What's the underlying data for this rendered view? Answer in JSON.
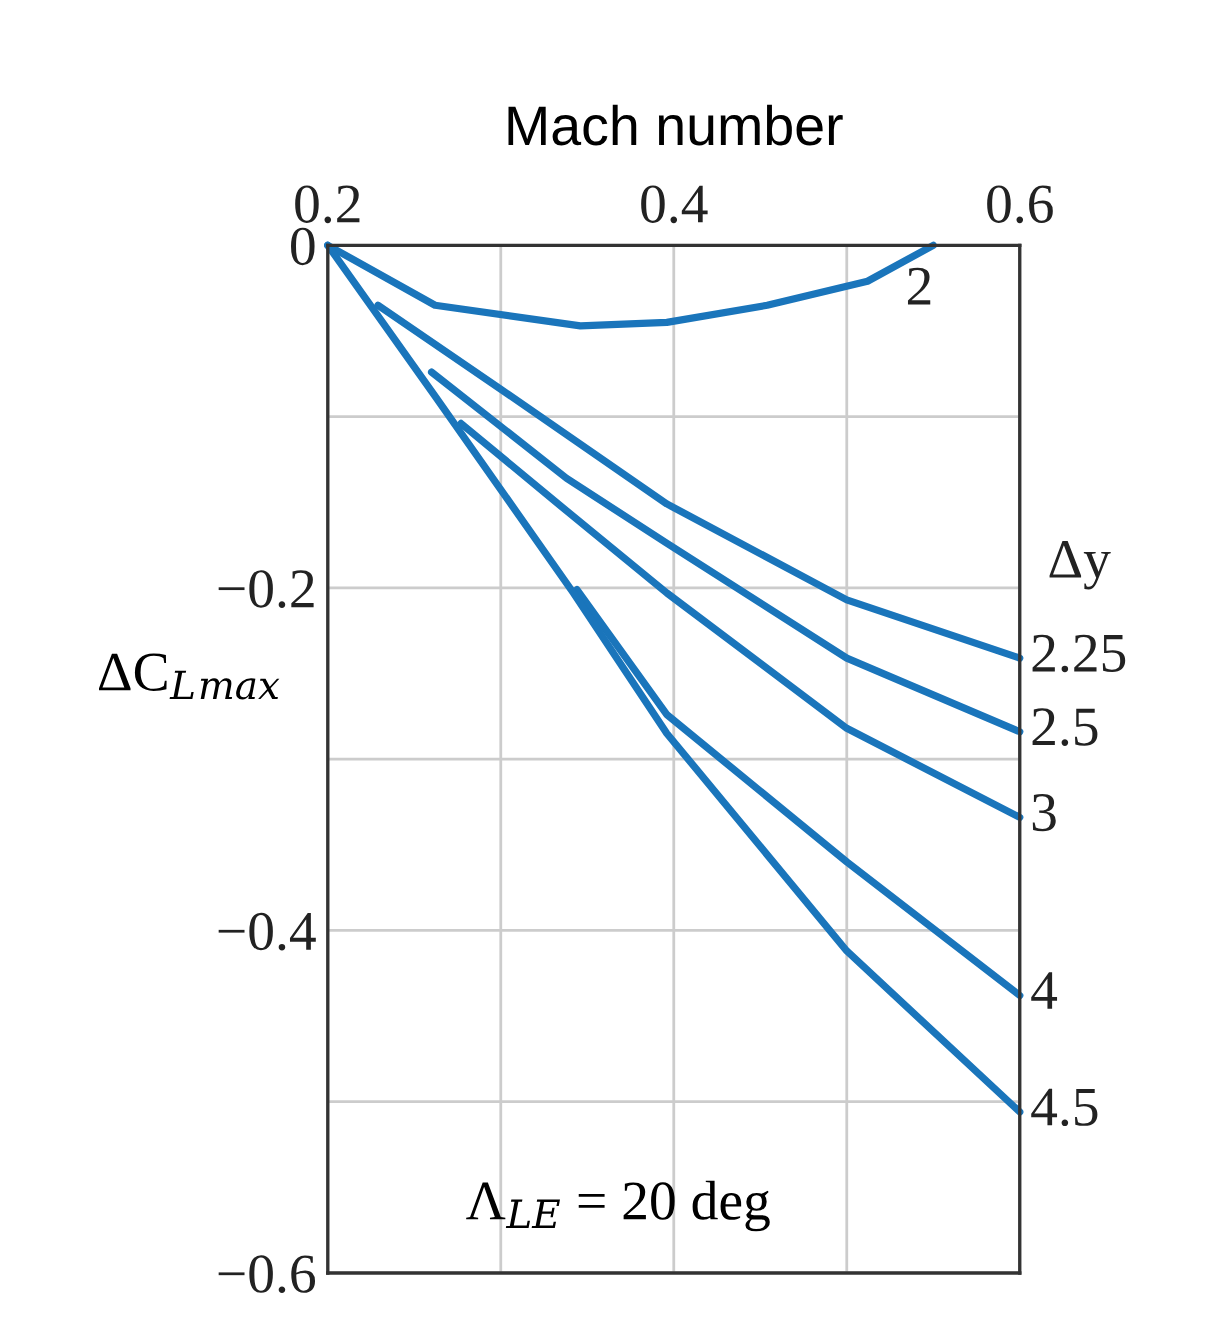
{
  "chart_data": {
    "type": "line",
    "xlabel": "Mach number",
    "ylabel": "ΔC$_{L}$$_{max}$",
    "legend_title": "Δy",
    "annotations": [
      "Λ$_{LE}$ = 20 deg"
    ],
    "xlim": [
      0.2,
      0.6
    ],
    "ylim": [
      -0.6,
      0
    ],
    "xticks": [
      0.2,
      {
        "value": 0.3,
        "label": null
      },
      0.4,
      {
        "value": 0.5,
        "label": null
      },
      0.6
    ],
    "yticks": [
      {
        "value": 0,
        "label": "0"
      },
      {
        "value": -0.1,
        "label": null
      },
      {
        "value": -0.2,
        "label": "−0.2"
      },
      {
        "value": -0.3,
        "label": null
      },
      {
        "value": -0.4,
        "label": "−0.4"
      },
      {
        "value": -0.5,
        "label": null
      },
      {
        "value": -0.6,
        "label": "−0.6"
      }
    ],
    "grid": true,
    "marker": "none",
    "line_style": "solid",
    "series": [
      {
        "name": "2",
        "color": "#1a75bb",
        "x": [
          0.2,
          0.262,
          0.346,
          0.396,
          0.454,
          0.512,
          0.55
        ],
        "values": [
          0,
          -0.035,
          -0.047,
          -0.045,
          -0.035,
          -0.021,
          0
        ]
      },
      {
        "name": "2.25",
        "color": "#1a75bb",
        "x": [
          0.229,
          0.3,
          0.396,
          0.5,
          0.6
        ],
        "values": [
          -0.035,
          -0.084,
          -0.151,
          -0.207,
          -0.241
        ]
      },
      {
        "name": "2.5",
        "color": "#1a75bb",
        "x": [
          0.26,
          0.338,
          0.396,
          0.5,
          0.6
        ],
        "values": [
          -0.074,
          -0.136,
          -0.174,
          -0.241,
          -0.284
        ]
      },
      {
        "name": "3",
        "color": "#1a75bb",
        "x": [
          0.277,
          0.338,
          0.396,
          0.5,
          0.6
        ],
        "values": [
          -0.104,
          -0.155,
          -0.203,
          -0.282,
          -0.334
        ]
      },
      {
        "name": "4",
        "color": "#1a75bb",
        "x": [
          0.344,
          0.396,
          0.5,
          0.6
        ],
        "values": [
          -0.201,
          -0.274,
          -0.36,
          -0.438
        ]
      },
      {
        "name": "4.5",
        "color": "#1a75bb",
        "x": [
          0.2,
          0.262,
          0.342,
          0.396,
          0.5,
          0.6
        ],
        "values": [
          0,
          -0.088,
          -0.203,
          -0.285,
          -0.412,
          -0.506
        ]
      }
    ]
  }
}
